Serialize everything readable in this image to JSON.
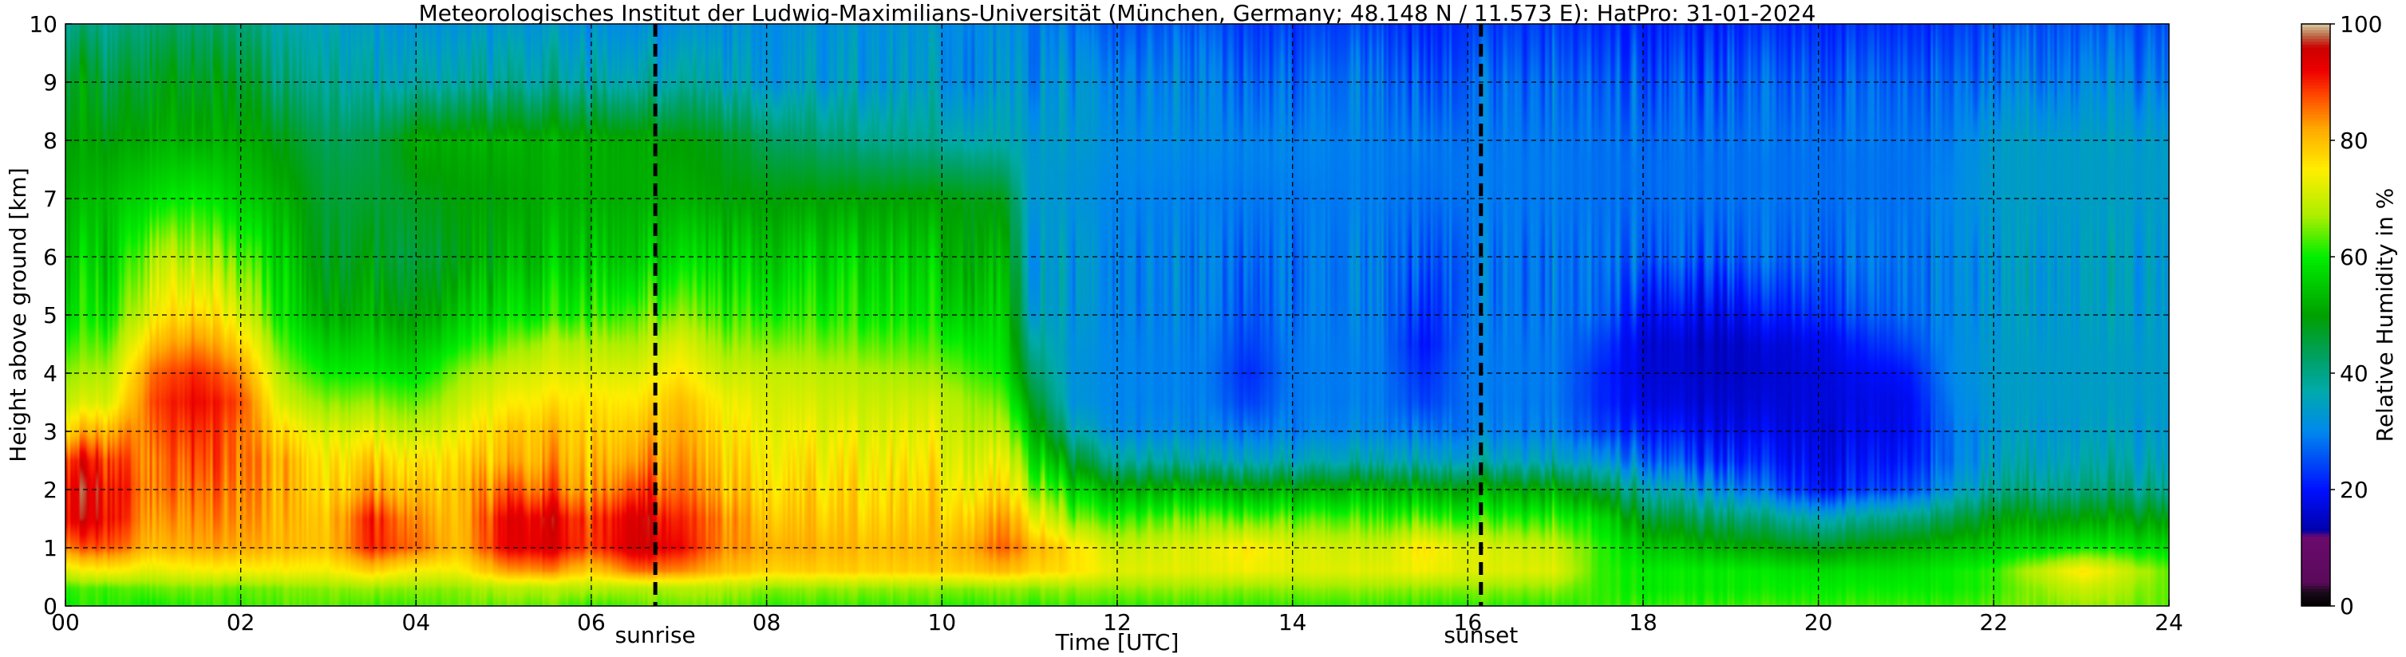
{
  "chart_data": {
    "type": "heatmap",
    "title": "Meteorologisches Institut der Ludwig-Maximilians-Universität (München, Germany; 48.148 N / 11.573 E):    HatPro: 31-01-2024",
    "xlabel": "Time [UTC]",
    "ylabel": "Height above ground [km]",
    "xlim": [
      0,
      24
    ],
    "ylim": [
      0,
      10
    ],
    "x_ticks": [
      "00",
      "02",
      "04",
      "06",
      "08",
      "10",
      "12",
      "14",
      "16",
      "18",
      "20",
      "22",
      "24"
    ],
    "y_ticks": [
      "0",
      "1",
      "2",
      "3",
      "4",
      "5",
      "6",
      "7",
      "8",
      "9",
      "10"
    ],
    "grid": true,
    "events": [
      {
        "label": "sunrise",
        "time": 6.73
      },
      {
        "label": "sunset",
        "time": 16.15
      }
    ],
    "colorbar": {
      "label": "Relative Humidity in %",
      "range": [
        0,
        100
      ],
      "ticks": [
        "0",
        "20",
        "40",
        "60",
        "80",
        "100"
      ],
      "colors": [
        {
          "v": 0,
          "c": "#000000"
        },
        {
          "v": 2.5,
          "c": "#1a0a1a"
        },
        {
          "v": 4,
          "c": "#5a0a5a"
        },
        {
          "v": 12,
          "c": "#6b0a6e"
        },
        {
          "v": 13,
          "c": "#0000aa"
        },
        {
          "v": 20,
          "c": "#0010ff"
        },
        {
          "v": 30,
          "c": "#0088ee"
        },
        {
          "v": 37,
          "c": "#00aaaa"
        },
        {
          "v": 43,
          "c": "#00a060"
        },
        {
          "v": 50,
          "c": "#00a000"
        },
        {
          "v": 60,
          "c": "#00ee00"
        },
        {
          "v": 67,
          "c": "#aaee00"
        },
        {
          "v": 75,
          "c": "#ffee00"
        },
        {
          "v": 82,
          "c": "#ffaa00"
        },
        {
          "v": 88,
          "c": "#ff4400"
        },
        {
          "v": 92,
          "c": "#ee0000"
        },
        {
          "v": 96,
          "c": "#cc0000"
        },
        {
          "v": 98,
          "c": "#bb6644"
        },
        {
          "v": 100,
          "c": "#d8c8a0"
        }
      ]
    },
    "humidity_profiles": {
      "heights_km": [
        0,
        0.3,
        0.6,
        1.0,
        1.5,
        2.0,
        2.5,
        3.0,
        3.5,
        4.0,
        4.5,
        5.0,
        6.0,
        7.0,
        8.0,
        9.0,
        10.0
      ],
      "times_utc": [
        0,
        0.5,
        1,
        1.5,
        2,
        2.5,
        3,
        3.5,
        4,
        4.5,
        5,
        5.5,
        6,
        6.5,
        7,
        7.5,
        8,
        9,
        10,
        10.7,
        11,
        11.5,
        12,
        13,
        13.5,
        14,
        15,
        15.5,
        16,
        17,
        17.5,
        18,
        19,
        20,
        21,
        21.5,
        22,
        23,
        24
      ],
      "rh_percent": [
        [
          60,
          62,
          72,
          85,
          93,
          93,
          90,
          78,
          70,
          66,
          62,
          58,
          55,
          52,
          50,
          48,
          40
        ],
        [
          62,
          63,
          75,
          88,
          93,
          93,
          90,
          82,
          72,
          68,
          64,
          60,
          56,
          54,
          50,
          46,
          40
        ],
        [
          60,
          64,
          72,
          80,
          82,
          84,
          84,
          86,
          88,
          86,
          80,
          74,
          68,
          58,
          52,
          48,
          42
        ],
        [
          62,
          65,
          74,
          82,
          84,
          86,
          88,
          90,
          92,
          90,
          84,
          78,
          68,
          60,
          52,
          48,
          42
        ],
        [
          62,
          64,
          74,
          82,
          84,
          85,
          86,
          86,
          88,
          84,
          78,
          72,
          64,
          56,
          52,
          48,
          42
        ],
        [
          63,
          65,
          74,
          80,
          80,
          80,
          80,
          76,
          70,
          66,
          62,
          58,
          55,
          52,
          48,
          40,
          36
        ],
        [
          64,
          66,
          74,
          80,
          80,
          78,
          76,
          72,
          66,
          60,
          56,
          52,
          48,
          46,
          44,
          40,
          36
        ],
        [
          62,
          66,
          78,
          90,
          90,
          82,
          78,
          72,
          66,
          60,
          56,
          52,
          48,
          46,
          44,
          36,
          33
        ],
        [
          63,
          66,
          74,
          86,
          84,
          80,
          76,
          70,
          64,
          58,
          54,
          50,
          46,
          48,
          52,
          38,
          33
        ],
        [
          64,
          66,
          74,
          80,
          80,
          80,
          78,
          74,
          70,
          66,
          60,
          56,
          50,
          50,
          52,
          38,
          33
        ],
        [
          64,
          68,
          82,
          92,
          92,
          86,
          80,
          78,
          74,
          70,
          64,
          58,
          52,
          50,
          52,
          38,
          33
        ],
        [
          64,
          68,
          84,
          94,
          94,
          86,
          82,
          80,
          76,
          72,
          68,
          60,
          54,
          52,
          52,
          38,
          33
        ],
        [
          62,
          68,
          78,
          88,
          88,
          82,
          80,
          78,
          76,
          72,
          68,
          62,
          56,
          52,
          52,
          38,
          32
        ],
        [
          64,
          68,
          86,
          96,
          96,
          90,
          84,
          80,
          76,
          72,
          68,
          64,
          56,
          52,
          52,
          38,
          32
        ],
        [
          64,
          68,
          84,
          92,
          90,
          86,
          84,
          82,
          80,
          76,
          72,
          66,
          58,
          52,
          50,
          38,
          32
        ],
        [
          64,
          68,
          80,
          84,
          84,
          80,
          78,
          76,
          74,
          70,
          66,
          62,
          56,
          50,
          48,
          36,
          32
        ],
        [
          62,
          66,
          78,
          82,
          80,
          78,
          76,
          74,
          72,
          70,
          66,
          62,
          56,
          50,
          44,
          34,
          32
        ],
        [
          62,
          66,
          78,
          80,
          78,
          76,
          74,
          72,
          70,
          68,
          64,
          60,
          56,
          50,
          40,
          33,
          32
        ],
        [
          62,
          66,
          78,
          80,
          78,
          76,
          74,
          72,
          70,
          66,
          62,
          58,
          54,
          50,
          38,
          33,
          32
        ],
        [
          62,
          66,
          80,
          86,
          82,
          76,
          72,
          68,
          64,
          60,
          58,
          56,
          52,
          48,
          36,
          32,
          31
        ],
        [
          62,
          66,
          78,
          82,
          76,
          68,
          62,
          56,
          50,
          44,
          40,
          36,
          34,
          34,
          34,
          32,
          30
        ],
        [
          62,
          66,
          76,
          76,
          64,
          56,
          46,
          36,
          32,
          32,
          32,
          32,
          32,
          32,
          33,
          31,
          28
        ],
        [
          62,
          66,
          72,
          70,
          62,
          52,
          38,
          31,
          30,
          30,
          30,
          30,
          30,
          30,
          31,
          30,
          26
        ],
        [
          62,
          66,
          72,
          72,
          64,
          52,
          36,
          30,
          29,
          29,
          29,
          29,
          29,
          29,
          30,
          29,
          26
        ],
        [
          62,
          66,
          74,
          76,
          64,
          52,
          36,
          29,
          24,
          22,
          24,
          26,
          28,
          29,
          30,
          28,
          24
        ],
        [
          62,
          66,
          72,
          72,
          64,
          52,
          36,
          30,
          29,
          29,
          29,
          29,
          29,
          29,
          30,
          28,
          24
        ],
        [
          62,
          66,
          72,
          70,
          62,
          52,
          36,
          30,
          29,
          29,
          29,
          29,
          29,
          29,
          29,
          28,
          24
        ],
        [
          62,
          66,
          74,
          76,
          64,
          52,
          36,
          29,
          24,
          22,
          20,
          22,
          26,
          28,
          29,
          26,
          22
        ],
        [
          62,
          66,
          72,
          72,
          62,
          52,
          36,
          30,
          29,
          29,
          29,
          29,
          29,
          29,
          29,
          28,
          24
        ],
        [
          62,
          66,
          72,
          70,
          62,
          52,
          36,
          30,
          29,
          29,
          29,
          29,
          29,
          29,
          29,
          28,
          24
        ],
        [
          62,
          62,
          62,
          62,
          58,
          46,
          32,
          24,
          22,
          22,
          24,
          27,
          28,
          28,
          28,
          26,
          22
        ],
        [
          62,
          60,
          60,
          56,
          48,
          38,
          28,
          22,
          18,
          17,
          17,
          20,
          27,
          28,
          28,
          26,
          22
        ],
        [
          62,
          60,
          60,
          52,
          42,
          30,
          22,
          18,
          16,
          15,
          15,
          18,
          26,
          28,
          28,
          26,
          22
        ],
        [
          62,
          60,
          58,
          48,
          36,
          20,
          18,
          17,
          17,
          17,
          18,
          22,
          27,
          28,
          28,
          26,
          22
        ],
        [
          62,
          60,
          58,
          52,
          40,
          24,
          20,
          18,
          18,
          20,
          24,
          27,
          28,
          28,
          28,
          26,
          22
        ],
        [
          62,
          60,
          60,
          54,
          44,
          32,
          28,
          28,
          29,
          30,
          30,
          30,
          30,
          30,
          29,
          27,
          23
        ],
        [
          64,
          62,
          62,
          56,
          50,
          40,
          36,
          34,
          34,
          34,
          34,
          34,
          34,
          34,
          34,
          30,
          26
        ],
        [
          66,
          70,
          76,
          60,
          50,
          40,
          36,
          34,
          34,
          34,
          34,
          34,
          34,
          34,
          34,
          30,
          26
        ],
        [
          64,
          64,
          64,
          58,
          50,
          40,
          36,
          34,
          34,
          34,
          34,
          34,
          34,
          34,
          34,
          30,
          26
        ]
      ]
    }
  }
}
